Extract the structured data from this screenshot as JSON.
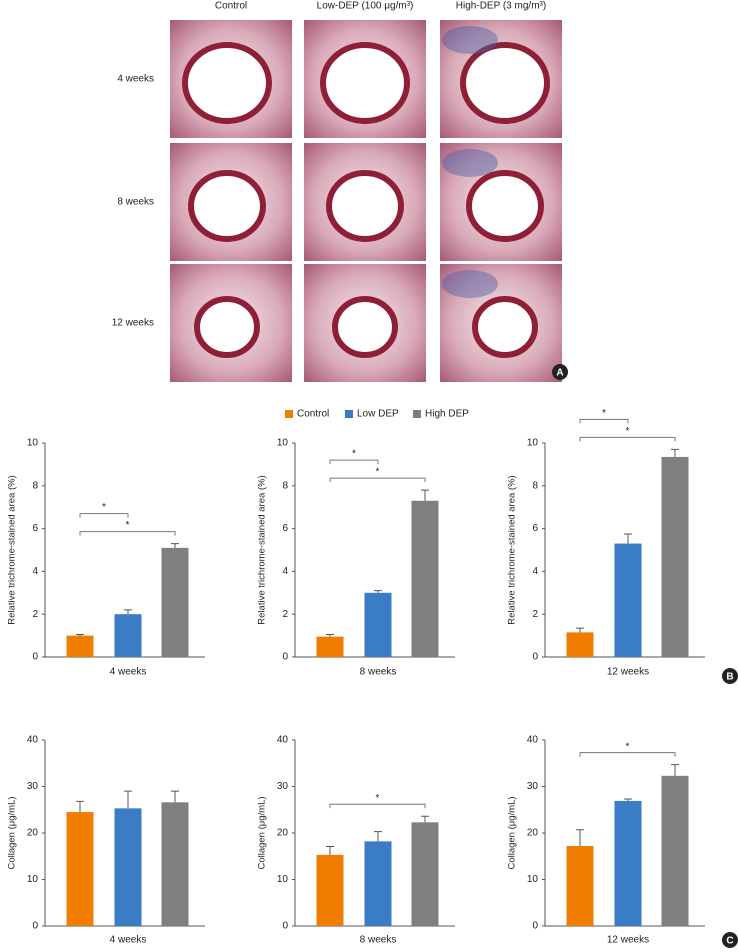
{
  "panel_a": {
    "columns": [
      "Control",
      "Low-DEP (100 μg/m³)",
      "High-DEP (3 mg/m³)"
    ],
    "rows": [
      "4 weeks",
      "8 weeks",
      "12 weeks"
    ],
    "label": "A"
  },
  "legend": [
    {
      "name": "Control",
      "color": "#f07c00"
    },
    {
      "name": "Low DEP",
      "color": "#3a7dc6"
    },
    {
      "name": "High DEP",
      "color": "#7f7f7f"
    }
  ],
  "panel_labels": [
    "B",
    "C"
  ],
  "chart_data": [
    {
      "type": "bar",
      "xlabel": "4 weeks",
      "ylabel": "Relative trichrome-stained area (%)",
      "values": [
        1.0,
        2.0,
        5.1
      ],
      "errors": [
        0.05,
        0.2,
        0.2
      ],
      "ylim": [
        0,
        10
      ],
      "yticks": [
        0,
        2,
        4,
        6,
        8,
        10
      ],
      "significance": [
        {
          "bars": [
            0,
            1
          ],
          "label": "*"
        },
        {
          "bars": [
            0,
            2
          ],
          "label": "*"
        }
      ]
    },
    {
      "type": "bar",
      "xlabel": "8 weeks",
      "ylabel": "Relative trichrome-stained area (%)",
      "values": [
        0.95,
        3.0,
        7.3
      ],
      "errors": [
        0.1,
        0.1,
        0.5
      ],
      "ylim": [
        0,
        10
      ],
      "yticks": [
        0,
        2,
        4,
        6,
        8,
        10
      ],
      "significance": [
        {
          "bars": [
            0,
            1
          ],
          "label": "*"
        },
        {
          "bars": [
            0,
            2
          ],
          "label": "*"
        }
      ]
    },
    {
      "type": "bar",
      "xlabel": "12 weeks",
      "ylabel": "Relative trichrome-stained area (%)",
      "values": [
        1.15,
        5.3,
        9.35
      ],
      "errors": [
        0.2,
        0.45,
        0.35
      ],
      "ylim": [
        0,
        10
      ],
      "yticks": [
        0,
        2,
        4,
        6,
        8,
        10
      ],
      "significance": [
        {
          "bars": [
            0,
            1
          ],
          "label": "*"
        },
        {
          "bars": [
            0,
            2
          ],
          "label": "*"
        }
      ]
    },
    {
      "type": "bar",
      "xlabel": "4 weeks",
      "ylabel": "Collagen (μg/mL)",
      "values": [
        24.5,
        25.3,
        26.6
      ],
      "errors": [
        2.3,
        3.7,
        2.4
      ],
      "ylim": [
        0,
        40
      ],
      "yticks": [
        0,
        10,
        20,
        30,
        40
      ],
      "significance": []
    },
    {
      "type": "bar",
      "xlabel": "8 weeks",
      "ylabel": "Collagen (μg/mL)",
      "values": [
        15.3,
        18.2,
        22.3
      ],
      "errors": [
        1.8,
        2.1,
        1.3
      ],
      "ylim": [
        0,
        40
      ],
      "yticks": [
        0,
        10,
        20,
        30,
        40
      ],
      "significance": [
        {
          "bars": [
            0,
            2
          ],
          "label": "*"
        }
      ]
    },
    {
      "type": "bar",
      "xlabel": "12 weeks",
      "ylabel": "Collagen (μg/mL)",
      "values": [
        17.2,
        26.9,
        32.3
      ],
      "errors": [
        3.5,
        0.4,
        2.4
      ],
      "ylim": [
        0,
        40
      ],
      "yticks": [
        0,
        10,
        20,
        30,
        40
      ],
      "significance": [
        {
          "bars": [
            0,
            2
          ],
          "label": "*"
        }
      ]
    }
  ]
}
